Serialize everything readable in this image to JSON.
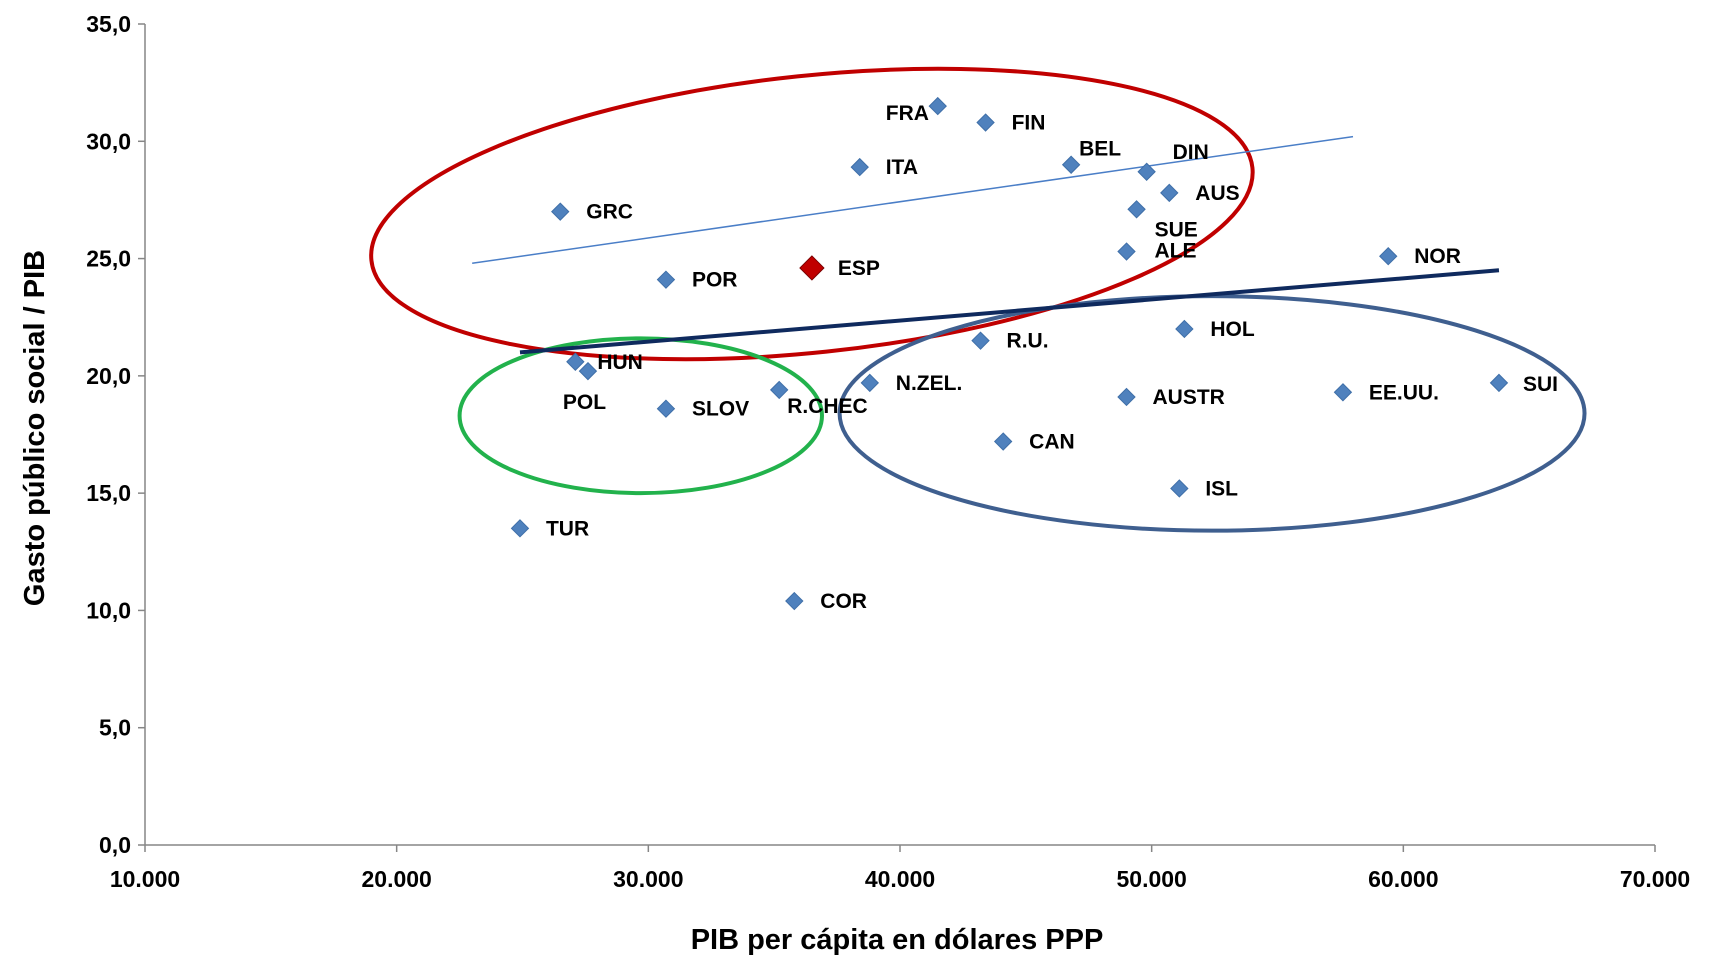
{
  "chart_data": {
    "type": "scatter",
    "title": "",
    "xlabel": "PIB per cápita en  dólares PPP",
    "ylabel": "Gasto público social /  PIB",
    "xlim": [
      10000,
      70000
    ],
    "ylim": [
      0,
      35
    ],
    "x_ticks": [
      10000,
      20000,
      30000,
      40000,
      50000,
      60000,
      70000
    ],
    "x_tick_labels": [
      "10.000",
      "20.000",
      "30.000",
      "40.000",
      "50.000",
      "60.000",
      "70.000"
    ],
    "y_ticks": [
      0,
      5,
      10,
      15,
      20,
      25,
      30,
      35
    ],
    "y_tick_labels": [
      "0,0",
      "5,0",
      "10,0",
      "15,0",
      "20,0",
      "25,0",
      "30,0",
      "35,0"
    ],
    "grid": false,
    "legend": "none",
    "colors": {
      "points": "#4f81bd",
      "highlight": "#c00000",
      "trend_all": "#0f2a5e",
      "trend_group": "#4a7ec7",
      "ellipse_red": "#c00000",
      "ellipse_green": "#22b24c",
      "ellipse_blue": "#3f5f8f"
    },
    "points": [
      {
        "label": "FRA",
        "x": 41500,
        "y": 31.5
      },
      {
        "label": "FIN",
        "x": 43400,
        "y": 30.8
      },
      {
        "label": "ITA",
        "x": 38400,
        "y": 28.9
      },
      {
        "label": "BEL",
        "x": 46800,
        "y": 29.0
      },
      {
        "label": "DIN",
        "x": 49800,
        "y": 28.7
      },
      {
        "label": "GRC",
        "x": 26500,
        "y": 27.0
      },
      {
        "label": "AUS",
        "x": 50700,
        "y": 27.8
      },
      {
        "label": "SUE",
        "x": 49400,
        "y": 27.1
      },
      {
        "label": "ALE",
        "x": 49000,
        "y": 25.3
      },
      {
        "label": "ESP",
        "x": 36500,
        "y": 24.6,
        "highlight": true
      },
      {
        "label": "POR",
        "x": 30700,
        "y": 24.1
      },
      {
        "label": "NOR",
        "x": 59400,
        "y": 25.1
      },
      {
        "label": "HOL",
        "x": 51300,
        "y": 22.0
      },
      {
        "label": "R.U.",
        "x": 43200,
        "y": 21.5
      },
      {
        "label": "HUN",
        "x": 27100,
        "y": 20.6
      },
      {
        "label": "POL",
        "x": 27600,
        "y": 20.2
      },
      {
        "label": "N.ZEL.",
        "x": 38800,
        "y": 19.7
      },
      {
        "label": "R.CHEC",
        "x": 35200,
        "y": 19.4
      },
      {
        "label": "SLOV",
        "x": 30700,
        "y": 18.6
      },
      {
        "label": "AUSTR",
        "x": 49000,
        "y": 19.1
      },
      {
        "label": "EE.UU.",
        "x": 57600,
        "y": 19.3
      },
      {
        "label": "SUI",
        "x": 63800,
        "y": 19.7
      },
      {
        "label": "CAN",
        "x": 44100,
        "y": 17.2
      },
      {
        "label": "ISL",
        "x": 51100,
        "y": 15.2
      },
      {
        "label": "TUR",
        "x": 24900,
        "y": 13.5
      },
      {
        "label": "COR",
        "x": 35800,
        "y": 10.4
      }
    ],
    "trendlines": [
      {
        "x": [
          24900,
          63800
        ],
        "y": [
          21.0,
          24.5
        ]
      },
      {
        "x": [
          23000,
          58000
        ],
        "y": [
          24.8,
          30.2
        ]
      }
    ],
    "groups": [
      {
        "color": "ellipse_red",
        "center": [
          36500,
          26.9
        ],
        "radii": [
          17600,
          5.9
        ],
        "angle_deg": -6
      },
      {
        "color": "ellipse_green",
        "center": [
          29700,
          18.3
        ],
        "radii": [
          7200,
          3.3
        ],
        "angle_deg": 0
      },
      {
        "color": "ellipse_blue",
        "center": [
          52400,
          18.4
        ],
        "radii": [
          14800,
          5.0
        ],
        "angle_deg": 0
      }
    ]
  }
}
